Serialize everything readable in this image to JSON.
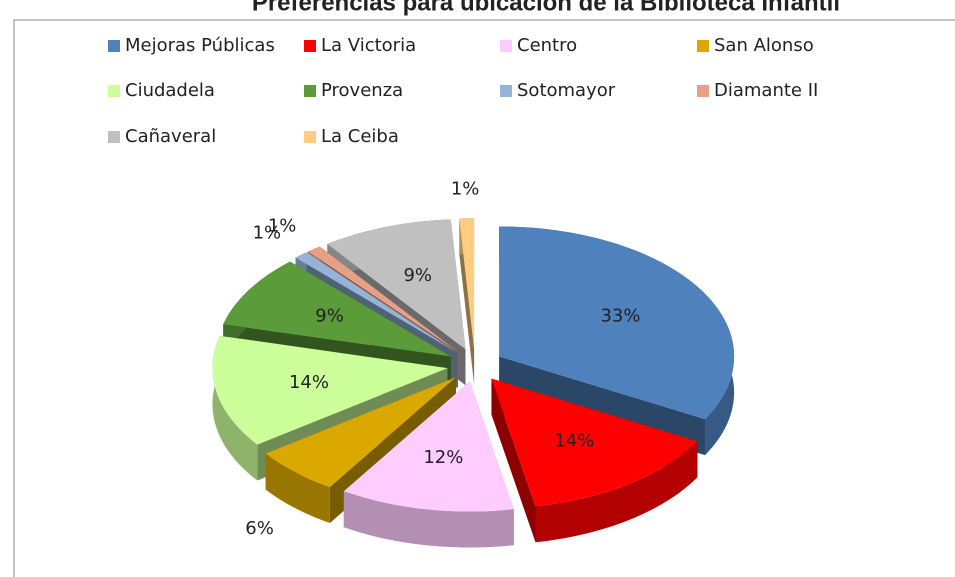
{
  "chart_data": {
    "type": "pie",
    "title": "Preferencias para ubicación de la Biblioteca Infantil",
    "categories": [
      "Mejoras Públicas",
      "La Victoria",
      "Centro",
      "San Alonso",
      "Ciudadela",
      "Provenza",
      "Sotomayor",
      "Diamante II",
      "Cañaveral",
      "La Ceiba"
    ],
    "values": [
      33,
      14,
      12,
      6,
      14,
      9,
      1,
      1,
      9,
      1
    ],
    "value_labels": [
      "33%",
      "14%",
      "12%",
      "6%",
      "14%",
      "9%",
      "1%",
      "1%",
      "9%",
      "1%"
    ],
    "colors": [
      "#4f81bd",
      "#ff0000",
      "#ffccff",
      "#dba800",
      "#ccff99",
      "#5b9b3a",
      "#95b3d7",
      "#e6a085",
      "#c0c0c0",
      "#ffcc80"
    ]
  }
}
